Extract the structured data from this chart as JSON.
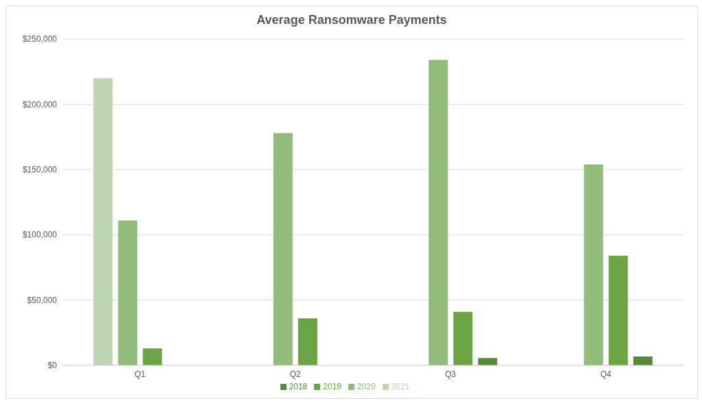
{
  "chart_data": {
    "type": "bar",
    "title": "Average Ransomware Payments",
    "categories": [
      "Q1",
      "Q2",
      "Q3",
      "Q4"
    ],
    "series": [
      {
        "name": "2021",
        "color": "#bed6b2",
        "values": [
          220000,
          null,
          null,
          null
        ]
      },
      {
        "name": "2020",
        "color": "#93bc7c",
        "values": [
          111000,
          178000,
          234000,
          154000
        ]
      },
      {
        "name": "2019",
        "color": "#6aa443",
        "values": [
          13000,
          36000,
          41000,
          84000
        ]
      },
      {
        "name": "2018",
        "color": "#558a37",
        "values": [
          null,
          null,
          5600,
          6800
        ]
      }
    ],
    "ylim": [
      0,
      250000
    ],
    "yticks": [
      {
        "value": 0,
        "label": "$0"
      },
      {
        "value": 50000,
        "label": "$50,000"
      },
      {
        "value": 100000,
        "label": "$100,000"
      },
      {
        "value": 150000,
        "label": "$150,000"
      },
      {
        "value": 200000,
        "label": "$200,000"
      },
      {
        "value": 250000,
        "label": "$250,000"
      }
    ],
    "grid": "y",
    "legend": "bottom"
  }
}
